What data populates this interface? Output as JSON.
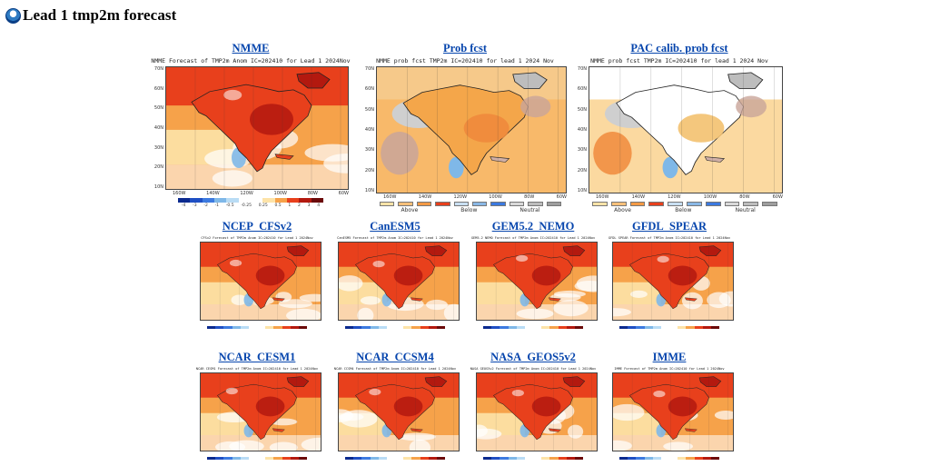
{
  "header": {
    "title": "Lead 1 tmp2m forecast",
    "logo_icon": "noaa-logo-icon"
  },
  "panels": {
    "nmme": {
      "label": "NMME",
      "caption": "NMME Forecast of TMP2m Anom IC=202410 for Lead 1 2024Nov",
      "lat": [
        "70N",
        "60N",
        "50N",
        "40N",
        "30N",
        "20N",
        "10N"
      ],
      "lon": [
        "160W",
        "140W",
        "120W",
        "100W",
        "80W",
        "60W"
      ],
      "colorbar_labels": [
        "-4",
        "-3",
        "-2",
        "-1",
        "-0.5",
        "-0.25",
        "0.25",
        "0.5",
        "1",
        "2",
        "3",
        "4"
      ]
    },
    "prob": {
      "label": "Prob fcst",
      "caption": "NMME prob fcst TMP2m IC=202410 for lead 1 2024 Nov",
      "lat": [
        "70N",
        "60N",
        "50N",
        "40N",
        "30N",
        "20N",
        "10N"
      ],
      "lon": [
        "160W",
        "140W",
        "120W",
        "100W",
        "80W",
        "60W"
      ],
      "legend": [
        "Above",
        "Below",
        "Neutral"
      ]
    },
    "pac": {
      "label": "PAC calib. prob fcst",
      "caption": "NMME prob fcst TMP2m IC=202410 for lead 1 2024 Nov",
      "lat": [
        "70N",
        "60N",
        "50N",
        "40N",
        "30N",
        "20N",
        "10N"
      ],
      "lon": [
        "160W",
        "140W",
        "120W",
        "100W",
        "80W",
        "60W"
      ],
      "legend": [
        "Above",
        "Below",
        "Neutral"
      ]
    },
    "cfs": {
      "label": "NCEP_CFSv2",
      "caption": "CFSv2 Forecast of TMP2m Anom IC=202410 for Lead 1 2024Nov"
    },
    "canesm": {
      "label": "CanESM5",
      "caption": "CanESM5 Forecast of TMP2m Anom IC=202410 for Lead 1 2024Nov"
    },
    "gem": {
      "label": "GEM5.2_NEMO",
      "caption": "GEM5.2 NEMO Forecast of TMP2m Anom IC=202410 for Lead 1 2024Nov"
    },
    "gfdl": {
      "label": "GFDL_SPEAR",
      "caption": "GFDL SPEAR Forecast of TMP2m Anom IC=202410 for Lead 1 2024Nov"
    },
    "cesm": {
      "label": "NCAR_CESM1",
      "caption": "NCAR CESM1 Forecast of TMP2m Anom IC=202410 for Lead 1 2024Nov"
    },
    "ccsm": {
      "label": "NCAR_CCSM4",
      "caption": "NCAR CCSM4 Forecast of TMP2m Anom IC=202410 for Lead 1 2024Nov"
    },
    "geos": {
      "label": "NASA_GEOS5v2",
      "caption": "NASA GEOS5v2 Forecast of TMP2m Anom IC=202410 for Lead 1 2024Nov"
    },
    "imme": {
      "label": "IMME",
      "caption": "IMME Forecast of TMP2m Anom IC=202410 for Lead 1 2024Nov"
    }
  },
  "colors": {
    "link": "#0645ad",
    "warm_dark": "#b3190f",
    "warm": "#e8401c",
    "warm_light": "#f6a24a",
    "neutral_pale": "#fde3a8",
    "cool": "#7fb8e8",
    "cool_dark": "#1f4fc4"
  }
}
